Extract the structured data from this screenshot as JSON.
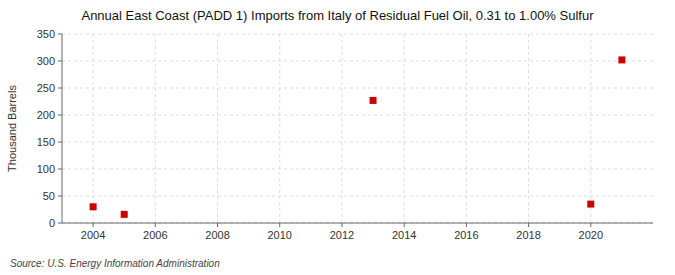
{
  "chart_data": {
    "type": "scatter",
    "title": "Annual East Coast (PADD 1) Imports from Italy of Residual Fuel Oil, 0.31 to 1.00% Sulfur",
    "ylabel": "Thousand Barrels",
    "source": "Source: U.S. Energy Information Administration",
    "x": [
      2004,
      2005,
      2013,
      2020,
      2021
    ],
    "values": [
      30,
      16,
      227,
      35,
      302
    ],
    "color": "#cc0000",
    "marker": "square",
    "xlim": [
      2003.0,
      2022.0
    ],
    "ylim": [
      0,
      350
    ],
    "xticks": [
      2004,
      2006,
      2008,
      2010,
      2012,
      2014,
      2016,
      2018,
      2020
    ],
    "yticks": [
      0,
      50,
      100,
      150,
      200,
      250,
      300,
      350
    ],
    "grid": true
  }
}
